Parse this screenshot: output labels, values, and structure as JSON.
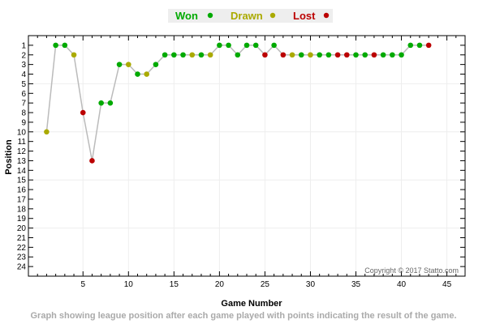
{
  "chart_data": {
    "type": "line",
    "xlabel": "Game Number",
    "ylabel": "Position",
    "xlim": [
      -1,
      47
    ],
    "ylim": [
      25,
      0
    ],
    "y_reversed": true,
    "x_ticks": [
      5,
      10,
      15,
      20,
      25,
      30,
      35,
      40,
      45
    ],
    "y_ticks": [
      1,
      2,
      3,
      4,
      5,
      6,
      7,
      8,
      9,
      10,
      11,
      12,
      13,
      14,
      15,
      16,
      17,
      18,
      19,
      20,
      21,
      22,
      23,
      24
    ],
    "grid": true,
    "legend": {
      "placement": "top-center",
      "items": [
        {
          "label": "Won",
          "color": "#00aa00",
          "key": "W"
        },
        {
          "label": "Drawn",
          "color": "#aaaa00",
          "key": "D"
        },
        {
          "label": "Lost",
          "color": "#bb0000",
          "key": "L"
        }
      ]
    },
    "line_color": "#bbbbbb",
    "x": [
      1,
      2,
      3,
      4,
      5,
      6,
      7,
      8,
      9,
      10,
      11,
      12,
      13,
      14,
      15,
      16,
      17,
      18,
      19,
      20,
      21,
      22,
      23,
      24,
      25,
      26,
      27,
      28,
      29,
      30,
      31,
      32,
      33,
      34,
      35,
      36,
      37,
      38,
      39,
      40,
      41,
      42,
      43
    ],
    "y": [
      10,
      1,
      1,
      2,
      8,
      13,
      7,
      7,
      3,
      3,
      4,
      4,
      3,
      2,
      2,
      2,
      2,
      2,
      2,
      1,
      1,
      2,
      1,
      1,
      2,
      1,
      2,
      2,
      2,
      2,
      2,
      2,
      2,
      2,
      2,
      2,
      2,
      2,
      2,
      2,
      1,
      1,
      1
    ],
    "results": [
      "D",
      "W",
      "W",
      "D",
      "L",
      "L",
      "W",
      "W",
      "W",
      "D",
      "W",
      "D",
      "W",
      "W",
      "W",
      "W",
      "D",
      "W",
      "D",
      "W",
      "W",
      "W",
      "W",
      "W",
      "L",
      "W",
      "L",
      "D",
      "W",
      "D",
      "W",
      "W",
      "L",
      "L",
      "W",
      "W",
      "L",
      "W",
      "W",
      "W",
      "W",
      "W",
      "L"
    ],
    "annotations": [
      "Copyright © 2017 Statto.com"
    ],
    "caption": "Graph showing league position after each game played with points indicating the result of the game."
  }
}
